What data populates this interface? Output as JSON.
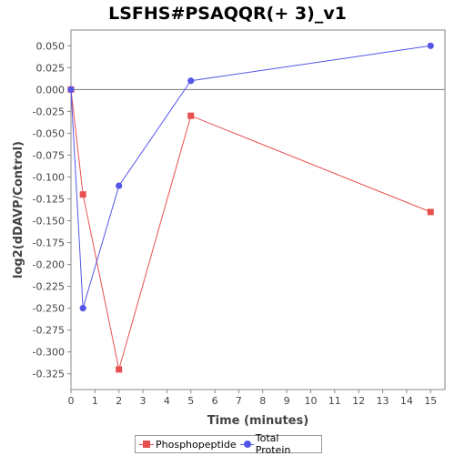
{
  "chart_data": {
    "type": "line",
    "title": "LSFHS#PSAQQR(+ 3)_v1",
    "xlabel": "Time (minutes)",
    "ylabel": "log2(dDAVP/Control)",
    "xlim": [
      0,
      15.6
    ],
    "ylim": [
      -0.343,
      0.068
    ],
    "xticks": [
      0,
      1,
      2,
      3,
      4,
      5,
      6,
      7,
      8,
      9,
      10,
      11,
      12,
      13,
      14,
      15
    ],
    "yticks": [
      0.05,
      0.025,
      0.0,
      -0.025,
      -0.05,
      -0.075,
      -0.1,
      -0.125,
      -0.15,
      -0.175,
      -0.2,
      -0.225,
      -0.25,
      -0.275,
      -0.3,
      -0.325
    ],
    "ytick_labels": [
      "0.050",
      "0.025",
      "0.000",
      "-0.025",
      "-0.050",
      "-0.075",
      "-0.100",
      "-0.125",
      "-0.150",
      "-0.175",
      "-0.200",
      "-0.225",
      "-0.250",
      "-0.275",
      "-0.300",
      "-0.325"
    ],
    "zero_line": true,
    "grid": false,
    "legend_position": "bottom",
    "series": [
      {
        "name": "Phosphopeptide",
        "color": "#e85050",
        "marker": "square",
        "x": [
          0,
          0.5,
          2,
          5,
          15
        ],
        "y": [
          0.0,
          -0.12,
          -0.32,
          -0.03,
          -0.14
        ]
      },
      {
        "name": "Total Protein",
        "color": "#5555e8",
        "marker": "circle",
        "x": [
          0,
          0.5,
          2,
          5,
          15
        ],
        "y": [
          0.0,
          -0.25,
          -0.11,
          0.01,
          0.05
        ]
      }
    ]
  }
}
